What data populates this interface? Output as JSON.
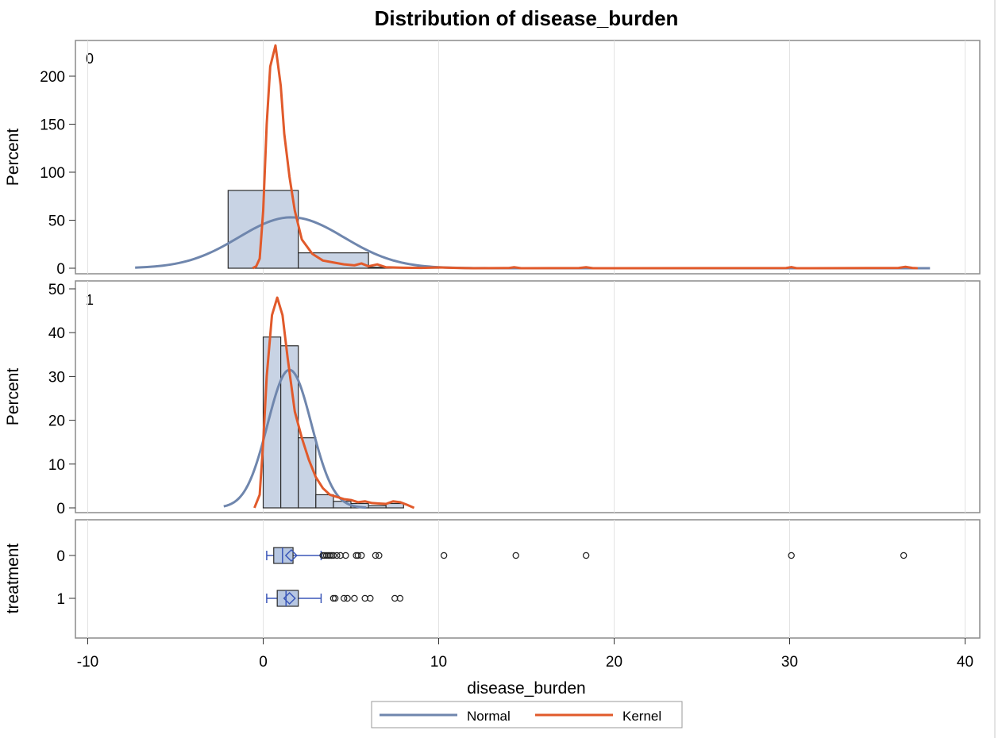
{
  "chart_data": {
    "type": "histogram",
    "title": "Distribution of disease_burden",
    "xlabel": "disease_burden",
    "xlim": [
      -10,
      40
    ],
    "xticks": [
      -10,
      0,
      10,
      20,
      30,
      40
    ],
    "grid": true,
    "colors": {
      "normal": "#6f86ad",
      "kernel": "#e15a2b",
      "bar_fill": "#c8d3e4",
      "box_fill": "#b7c7e2",
      "box_line": "#3a56b8"
    },
    "legend": {
      "placement": "bottom-center",
      "entries": [
        {
          "name": "Normal",
          "color": "#6f86ad"
        },
        {
          "name": "Kernel",
          "color": "#e15a2b"
        }
      ]
    },
    "panels": [
      {
        "label": "0",
        "ylabel": "Percent",
        "ylim": [
          0,
          240
        ],
        "yticks": [
          0,
          50,
          100,
          150,
          200
        ],
        "bins": [
          {
            "x0": -2,
            "x1": 2,
            "pct": 81
          },
          {
            "x0": 2,
            "x1": 6,
            "pct": 16
          },
          {
            "x0": 6,
            "x1": 10,
            "pct": 1
          }
        ],
        "normal_curve": {
          "mean": 1.6,
          "sd": 3.0,
          "peak_pct": 53
        },
        "kernel_curve": [
          [
            -0.6,
            0
          ],
          [
            -0.4,
            2
          ],
          [
            -0.2,
            10
          ],
          [
            0,
            60
          ],
          [
            0.2,
            150
          ],
          [
            0.4,
            210
          ],
          [
            0.7,
            232
          ],
          [
            1.0,
            190
          ],
          [
            1.2,
            140
          ],
          [
            1.5,
            95
          ],
          [
            1.8,
            60
          ],
          [
            2.2,
            30
          ],
          [
            2.8,
            15
          ],
          [
            3.4,
            8
          ],
          [
            4.0,
            6
          ],
          [
            4.6,
            4
          ],
          [
            5.2,
            3
          ],
          [
            5.6,
            5
          ],
          [
            6.0,
            2
          ],
          [
            6.5,
            4
          ],
          [
            7.0,
            1
          ],
          [
            8.0,
            0.5
          ],
          [
            9.0,
            0.3
          ],
          [
            10.0,
            0.8
          ],
          [
            11.0,
            0.3
          ],
          [
            12.0,
            0
          ],
          [
            14.0,
            0.2
          ],
          [
            14.3,
            1
          ],
          [
            14.7,
            0
          ],
          [
            18.0,
            0.2
          ],
          [
            18.4,
            1
          ],
          [
            18.8,
            0
          ],
          [
            29.8,
            0.2
          ],
          [
            30.1,
            1.2
          ],
          [
            30.4,
            0
          ],
          [
            36.2,
            0.3
          ],
          [
            36.6,
            1.5
          ],
          [
            37.0,
            0.3
          ],
          [
            37.3,
            0
          ]
        ]
      },
      {
        "label": "1",
        "ylabel": "Percent",
        "ylim": [
          0,
          50
        ],
        "yticks": [
          0,
          10,
          20,
          30,
          40,
          50
        ],
        "bins": [
          {
            "x0": 0,
            "x1": 1,
            "pct": 39
          },
          {
            "x0": 1,
            "x1": 2,
            "pct": 37
          },
          {
            "x0": 2,
            "x1": 3,
            "pct": 16
          },
          {
            "x0": 3,
            "x1": 4,
            "pct": 3
          },
          {
            "x0": 4,
            "x1": 5,
            "pct": 1.5
          },
          {
            "x0": 5,
            "x1": 6,
            "pct": 1
          },
          {
            "x0": 6,
            "x1": 7,
            "pct": 0.5
          },
          {
            "x0": 7,
            "x1": 8,
            "pct": 1
          }
        ],
        "normal_curve": {
          "mean": 1.5,
          "sd": 1.25,
          "peak_pct": 31.5
        },
        "kernel_curve": [
          [
            -0.5,
            0
          ],
          [
            -0.2,
            3
          ],
          [
            0,
            15
          ],
          [
            0.2,
            30
          ],
          [
            0.5,
            44
          ],
          [
            0.8,
            48
          ],
          [
            1.1,
            44
          ],
          [
            1.4,
            34
          ],
          [
            1.8,
            22
          ],
          [
            2.2,
            16
          ],
          [
            2.6,
            11
          ],
          [
            3.0,
            7
          ],
          [
            3.4,
            4.5
          ],
          [
            3.8,
            3
          ],
          [
            4.2,
            2.5
          ],
          [
            4.6,
            2
          ],
          [
            5.0,
            1.8
          ],
          [
            5.4,
            1.3
          ],
          [
            5.8,
            1.5
          ],
          [
            6.2,
            1.1
          ],
          [
            6.6,
            1
          ],
          [
            7.0,
            0.9
          ],
          [
            7.4,
            1.5
          ],
          [
            7.8,
            1.3
          ],
          [
            8.2,
            0.7
          ],
          [
            8.6,
            0
          ]
        ]
      }
    ],
    "boxplot": {
      "ylabel": "treatment",
      "categories": [
        "0",
        "1"
      ],
      "boxes": [
        {
          "group": "0",
          "q1": 0.6,
          "median": 1.1,
          "q3": 1.7,
          "mean": 1.6,
          "whisker_low": 0.2,
          "whisker_high": 3.3,
          "outliers": [
            3.4,
            3.5,
            3.6,
            3.7,
            3.8,
            3.9,
            4.0,
            4.2,
            4.4,
            4.7,
            5.3,
            5.4,
            5.6,
            6.4,
            6.6,
            10.3,
            14.4,
            18.4,
            30.1,
            36.5
          ]
        },
        {
          "group": "1",
          "q1": 0.8,
          "median": 1.3,
          "q3": 2.0,
          "mean": 1.5,
          "whisker_low": 0.2,
          "whisker_high": 3.3,
          "outliers": [
            4.0,
            4.1,
            4.6,
            4.8,
            5.2,
            5.8,
            6.1,
            7.5,
            7.8
          ]
        }
      ]
    }
  }
}
